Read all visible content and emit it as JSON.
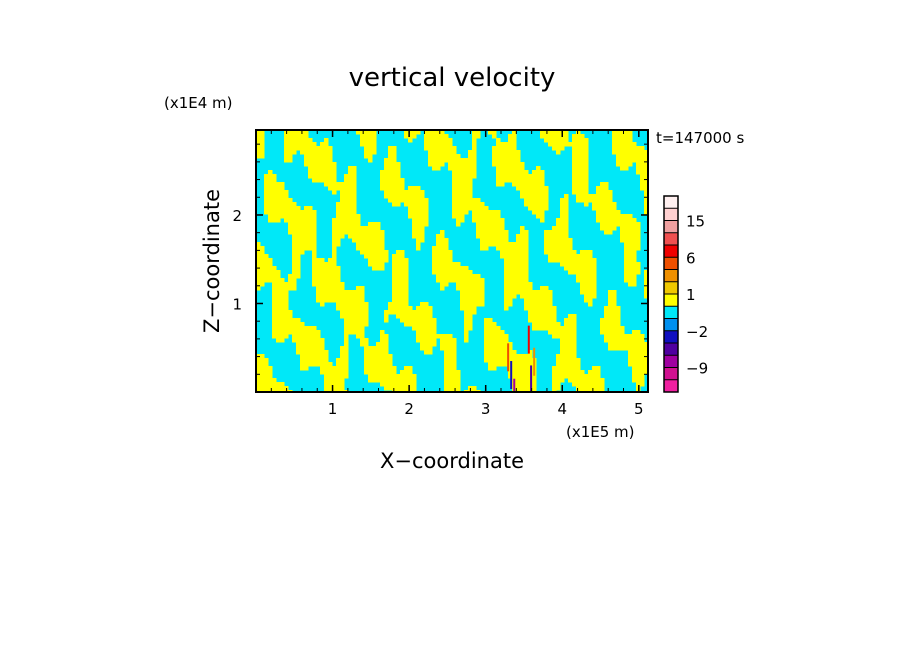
{
  "chart_data": {
    "type": "heatmap",
    "title": "vertical velocity",
    "xlabel": "X−coordinate",
    "ylabel": "Z−coordinate",
    "x_unit": "(x1E5 m)",
    "y_unit": "(x1E4 m)",
    "time_label": "t=147000 s",
    "xlim": [
      0,
      5.12
    ],
    "ylim": [
      0,
      2.96
    ],
    "x_ticks": [
      1,
      2,
      3,
      4,
      5
    ],
    "y_ticks": [
      1,
      2
    ],
    "colorbar": {
      "levels": [
        -12,
        -9,
        -6,
        -4,
        -2,
        -1,
        0,
        1,
        2,
        4,
        6,
        9,
        12,
        15,
        20,
        25
      ],
      "colors": [
        "#f020a0",
        "#d01090",
        "#a000a0",
        "#5000a0",
        "#1010c0",
        "#0090f0",
        "#00e8f8",
        "#ffff00",
        "#f0c800",
        "#f09000",
        "#f05000",
        "#f00000",
        "#f05050",
        "#f0a0a0",
        "#ffd0d0",
        "#fff0f0"
      ],
      "labels": [
        "15",
        "6",
        "1",
        "−2",
        "−9"
      ],
      "label_values": [
        15,
        6,
        1,
        -2,
        -9
      ]
    },
    "field": {
      "dominant_colors": [
        "#00e8f8",
        "#ffff00"
      ],
      "description_values": "alternating positive (yellow) and negative (cyan) vertical velocity bands; strong extremes near x=3.3-3.7, z<1"
    }
  }
}
